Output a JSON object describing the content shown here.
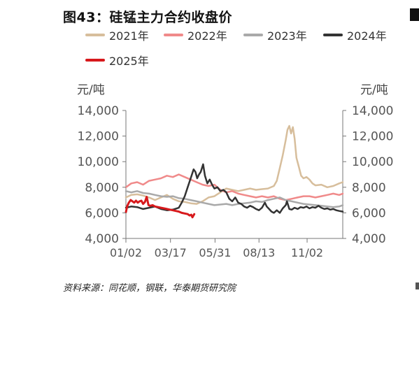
{
  "title": "图43：硅锰主力合约收盘价",
  "source": "资料来源：同花顺，钢联，华泰期货研究院",
  "chart_data": {
    "type": "line",
    "title": "图43：硅锰主力合约收盘价",
    "ylabel_left": "元/吨",
    "ylabel_right": "元/吨",
    "ylim": [
      4000,
      14000
    ],
    "yticks": [
      "4,000",
      "6,000",
      "8,000",
      "10,000",
      "12,000",
      "14,000"
    ],
    "xticks": [
      "01/02",
      "03/17",
      "05/31",
      "08/13",
      "11/02"
    ],
    "xtick_days": [
      1,
      76,
      151,
      225,
      306
    ],
    "x_range_days": [
      1,
      366
    ],
    "legend_position": "top",
    "series": [
      {
        "name": "2021年",
        "color": "#D7BE9C",
        "width": 2.5,
        "points": [
          [
            1,
            7200
          ],
          [
            10,
            7400
          ],
          [
            20,
            7450
          ],
          [
            30,
            7350
          ],
          [
            40,
            7200
          ],
          [
            50,
            7000
          ],
          [
            60,
            7200
          ],
          [
            70,
            7400
          ],
          [
            80,
            7100
          ],
          [
            90,
            6900
          ],
          [
            100,
            6850
          ],
          [
            110,
            6750
          ],
          [
            120,
            6700
          ],
          [
            130,
            6900
          ],
          [
            140,
            7200
          ],
          [
            150,
            7300
          ],
          [
            160,
            7600
          ],
          [
            170,
            7900
          ],
          [
            180,
            7800
          ],
          [
            190,
            7700
          ],
          [
            200,
            7800
          ],
          [
            210,
            7900
          ],
          [
            220,
            7800
          ],
          [
            230,
            7850
          ],
          [
            240,
            7900
          ],
          [
            250,
            8100
          ],
          [
            255,
            8500
          ],
          [
            260,
            9500
          ],
          [
            265,
            10500
          ],
          [
            270,
            11700
          ],
          [
            273,
            12500
          ],
          [
            276,
            12800
          ],
          [
            279,
            12200
          ],
          [
            282,
            12700
          ],
          [
            285,
            11800
          ],
          [
            288,
            10300
          ],
          [
            292,
            9600
          ],
          [
            296,
            8900
          ],
          [
            300,
            8700
          ],
          [
            305,
            8800
          ],
          [
            310,
            8600
          ],
          [
            315,
            8300
          ],
          [
            320,
            8150
          ],
          [
            330,
            8200
          ],
          [
            340,
            8000
          ],
          [
            350,
            8100
          ],
          [
            360,
            8300
          ],
          [
            366,
            8400
          ]
        ]
      },
      {
        "name": "2022年",
        "color": "#F08A8A",
        "width": 2.5,
        "points": [
          [
            1,
            8000
          ],
          [
            10,
            8300
          ],
          [
            20,
            8400
          ],
          [
            30,
            8200
          ],
          [
            40,
            8500
          ],
          [
            50,
            8600
          ],
          [
            60,
            8700
          ],
          [
            70,
            8900
          ],
          [
            80,
            8800
          ],
          [
            90,
            9000
          ],
          [
            100,
            8800
          ],
          [
            110,
            8600
          ],
          [
            120,
            8400
          ],
          [
            130,
            8200
          ],
          [
            140,
            8100
          ],
          [
            150,
            8200
          ],
          [
            160,
            7800
          ],
          [
            170,
            7600
          ],
          [
            180,
            7700
          ],
          [
            190,
            7500
          ],
          [
            200,
            7400
          ],
          [
            210,
            7300
          ],
          [
            220,
            7200
          ],
          [
            230,
            7300
          ],
          [
            240,
            7200
          ],
          [
            250,
            7300
          ],
          [
            260,
            7100
          ],
          [
            270,
            7000
          ],
          [
            280,
            7100
          ],
          [
            290,
            7200
          ],
          [
            300,
            7300
          ],
          [
            310,
            7300
          ],
          [
            320,
            7200
          ],
          [
            330,
            7300
          ],
          [
            340,
            7400
          ],
          [
            350,
            7500
          ],
          [
            360,
            7400
          ],
          [
            366,
            7500
          ]
        ]
      },
      {
        "name": "2023年",
        "color": "#A9A9A9",
        "width": 2.5,
        "points": [
          [
            1,
            7700
          ],
          [
            10,
            7600
          ],
          [
            20,
            7700
          ],
          [
            30,
            7550
          ],
          [
            40,
            7500
          ],
          [
            50,
            7400
          ],
          [
            60,
            7300
          ],
          [
            70,
            7250
          ],
          [
            80,
            7300
          ],
          [
            90,
            7150
          ],
          [
            100,
            7100
          ],
          [
            110,
            7000
          ],
          [
            120,
            6900
          ],
          [
            130,
            6800
          ],
          [
            140,
            6700
          ],
          [
            150,
            6600
          ],
          [
            160,
            6650
          ],
          [
            170,
            6700
          ],
          [
            180,
            6600
          ],
          [
            190,
            6700
          ],
          [
            200,
            6750
          ],
          [
            210,
            6800
          ],
          [
            220,
            6900
          ],
          [
            230,
            6850
          ],
          [
            240,
            7000
          ],
          [
            250,
            7100
          ],
          [
            260,
            7200
          ],
          [
            270,
            7000
          ],
          [
            280,
            6900
          ],
          [
            290,
            6800
          ],
          [
            300,
            6700
          ],
          [
            310,
            6650
          ],
          [
            320,
            6600
          ],
          [
            330,
            6550
          ],
          [
            340,
            6500
          ],
          [
            350,
            6450
          ],
          [
            360,
            6500
          ],
          [
            366,
            6600
          ]
        ]
      },
      {
        "name": "2024年",
        "color": "#333333",
        "width": 2.5,
        "points": [
          [
            1,
            6400
          ],
          [
            10,
            6500
          ],
          [
            20,
            6450
          ],
          [
            30,
            6300
          ],
          [
            40,
            6400
          ],
          [
            50,
            6500
          ],
          [
            60,
            6300
          ],
          [
            70,
            6200
          ],
          [
            80,
            6250
          ],
          [
            90,
            6400
          ],
          [
            95,
            6800
          ],
          [
            100,
            7300
          ],
          [
            105,
            8000
          ],
          [
            110,
            8700
          ],
          [
            115,
            9400
          ],
          [
            118,
            9200
          ],
          [
            121,
            8700
          ],
          [
            124,
            9000
          ],
          [
            127,
            9200
          ],
          [
            131,
            9800
          ],
          [
            134,
            8900
          ],
          [
            138,
            8300
          ],
          [
            142,
            8600
          ],
          [
            146,
            8200
          ],
          [
            150,
            7900
          ],
          [
            155,
            8000
          ],
          [
            160,
            7700
          ],
          [
            165,
            7800
          ],
          [
            170,
            7600
          ],
          [
            175,
            7100
          ],
          [
            180,
            6900
          ],
          [
            185,
            7200
          ],
          [
            190,
            6800
          ],
          [
            195,
            6700
          ],
          [
            200,
            6500
          ],
          [
            205,
            6400
          ],
          [
            210,
            6550
          ],
          [
            215,
            6450
          ],
          [
            220,
            6300
          ],
          [
            225,
            6200
          ],
          [
            230,
            6400
          ],
          [
            235,
            6800
          ],
          [
            238,
            6500
          ],
          [
            242,
            6300
          ],
          [
            246,
            6100
          ],
          [
            250,
            6000
          ],
          [
            255,
            6200
          ],
          [
            260,
            6000
          ],
          [
            265,
            6350
          ],
          [
            270,
            6600
          ],
          [
            272,
            6900
          ],
          [
            276,
            6300
          ],
          [
            280,
            6250
          ],
          [
            285,
            6400
          ],
          [
            290,
            6300
          ],
          [
            295,
            6450
          ],
          [
            300,
            6400
          ],
          [
            305,
            6500
          ],
          [
            310,
            6350
          ],
          [
            315,
            6450
          ],
          [
            320,
            6400
          ],
          [
            325,
            6550
          ],
          [
            330,
            6400
          ],
          [
            335,
            6300
          ],
          [
            340,
            6350
          ],
          [
            345,
            6250
          ],
          [
            350,
            6300
          ],
          [
            355,
            6200
          ],
          [
            360,
            6150
          ],
          [
            366,
            6100
          ]
        ]
      },
      {
        "name": "2025年",
        "color": "#D7191C",
        "width": 3,
        "points": [
          [
            1,
            6050
          ],
          [
            3,
            6500
          ],
          [
            6,
            6800
          ],
          [
            9,
            7000
          ],
          [
            12,
            6900
          ],
          [
            15,
            6800
          ],
          [
            18,
            6950
          ],
          [
            21,
            6800
          ],
          [
            24,
            6900
          ],
          [
            27,
            6950
          ],
          [
            30,
            6700
          ],
          [
            33,
            6850
          ],
          [
            36,
            7250
          ],
          [
            39,
            6600
          ],
          [
            42,
            6550
          ],
          [
            46,
            6600
          ],
          [
            50,
            6500
          ],
          [
            55,
            6450
          ],
          [
            60,
            6400
          ],
          [
            65,
            6350
          ],
          [
            70,
            6300
          ],
          [
            75,
            6250
          ],
          [
            80,
            6200
          ],
          [
            85,
            6150
          ],
          [
            90,
            6100
          ],
          [
            95,
            6000
          ],
          [
            100,
            5950
          ],
          [
            105,
            5900
          ],
          [
            108,
            5800
          ],
          [
            111,
            5850
          ],
          [
            113,
            5650
          ],
          [
            116,
            5900
          ]
        ]
      }
    ]
  }
}
